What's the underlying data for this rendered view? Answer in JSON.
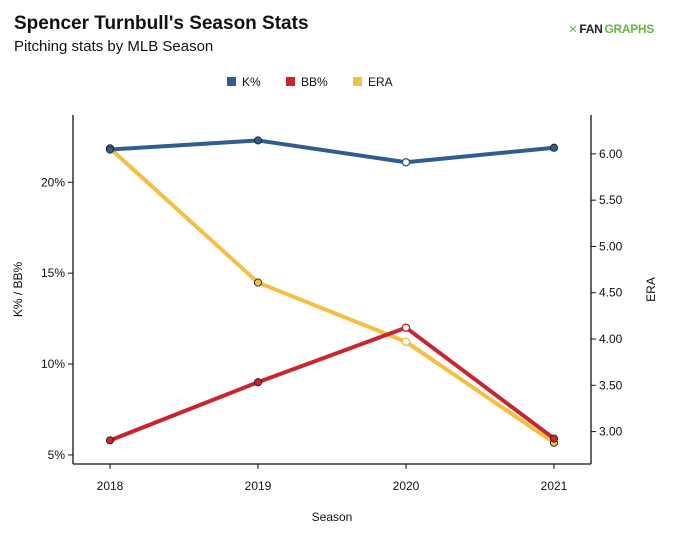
{
  "header": {
    "title": "Spencer Turnbull's Season Stats",
    "subtitle": "Pitching stats by MLB Season",
    "logo_text_a": "FAN",
    "logo_text_b": "GRAPHS"
  },
  "colors": {
    "k_pct": "#2f5d8f",
    "bb_pct": "#c8252f",
    "era": "#f5bf42"
  },
  "chart_data": {
    "type": "line",
    "title": "Spencer Turnbull's Season Stats",
    "subtitle": "Pitching stats by MLB Season",
    "xlabel": "Season",
    "ylabel_left": "K% / BB%",
    "ylabel_right": "ERA",
    "categories": [
      "2018",
      "2019",
      "2020",
      "2021"
    ],
    "left_axis": {
      "ylim": [
        0.045,
        0.237
      ],
      "ticks": [
        0.05,
        0.1,
        0.15,
        0.2
      ],
      "tick_labels": [
        "5%",
        "10%",
        "15%",
        "20%"
      ]
    },
    "right_axis": {
      "ylim": [
        2.65,
        6.42
      ],
      "ticks": [
        3.0,
        3.5,
        4.0,
        4.5,
        5.0,
        5.5,
        6.0
      ],
      "tick_labels": [
        "3.00",
        "3.50",
        "4.00",
        "4.50",
        "5.00",
        "5.50",
        "6.00"
      ]
    },
    "legend_position": "top-center",
    "series": [
      {
        "name": "K%",
        "axis": "left",
        "color": "#2f5d8f",
        "values": [
          0.218,
          0.223,
          0.211,
          0.219
        ]
      },
      {
        "name": "BB%",
        "axis": "left",
        "color": "#c8252f",
        "values": [
          0.058,
          0.09,
          0.12,
          0.059
        ]
      },
      {
        "name": "ERA",
        "axis": "right",
        "color": "#f5bf42",
        "values": [
          6.06,
          4.61,
          3.97,
          2.88
        ]
      }
    ],
    "hollow_markers": [
      {
        "series": 0,
        "index": 2
      },
      {
        "series": 1,
        "index": 2
      },
      {
        "series": 2,
        "index": 2
      }
    ]
  }
}
